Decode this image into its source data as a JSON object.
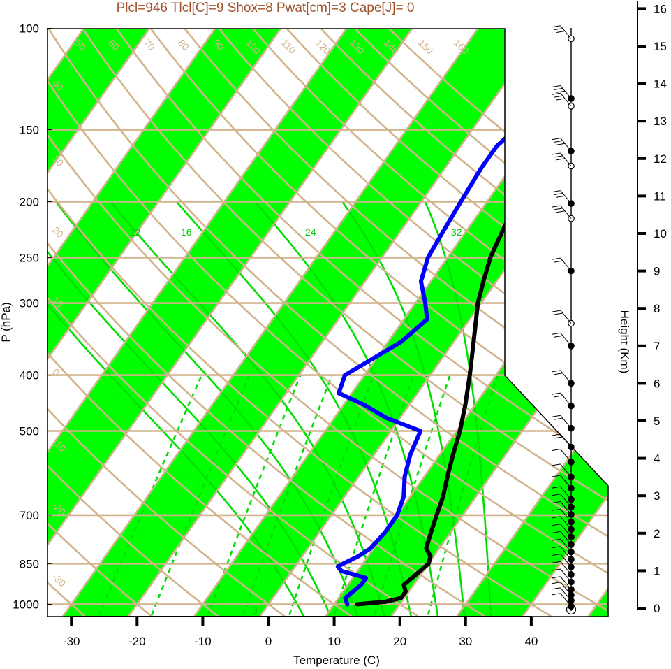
{
  "chart_data": {
    "type": "line",
    "subtype": "skew-t log-p diagram",
    "title": "Plcl=946 Tlcl[C]=9 Shox=8 Pwat[cm]=3 Cape[J]= 0",
    "xlabel": "Temperature (C)",
    "ylabel": "P (hPa)",
    "y2label": "Height (Km)",
    "xlim": [
      -34,
      52
    ],
    "ylim": [
      1050,
      100
    ],
    "y_scale": "log",
    "pressure_ticks": [
      100,
      150,
      200,
      250,
      300,
      400,
      500,
      700,
      850,
      1000
    ],
    "temperature_ticks": [
      -30,
      -20,
      -10,
      0,
      10,
      20,
      30,
      40
    ],
    "height_ticks_km": [
      0,
      1,
      2,
      3,
      4,
      5,
      6,
      7,
      8,
      9,
      10,
      11,
      12,
      13,
      14,
      15,
      16
    ],
    "isotherm_labels": [
      "50",
      "60",
      "70",
      "80",
      "90",
      "100",
      "110",
      "120",
      "130",
      "140",
      "150",
      "160",
      "40",
      "30",
      "20",
      "10",
      "0",
      "-10",
      "-20",
      "-30"
    ],
    "right_isotherm_labels": [
      "30",
      "20",
      "10",
      "0",
      "10",
      "20",
      "30"
    ],
    "mixing_ratio_labels": [
      "3"
    ],
    "moist_adiabat_labels": [
      "12",
      "16",
      "24",
      "32"
    ],
    "colors": {
      "band": "#00ff00",
      "grid": "#d2b48c",
      "temperature": "#000000",
      "dewpoint": "#0000ff",
      "adiabat": "#00e000",
      "title": "#a0522d"
    },
    "series": [
      {
        "name": "",
        "kind": "temperature",
        "points": [
          [
            1000,
            13.5
          ],
          [
            990,
            17.5
          ],
          [
            975,
            19.5
          ],
          [
            950,
            19.5
          ],
          [
            925,
            18.5
          ],
          [
            900,
            19.0
          ],
          [
            875,
            19.5
          ],
          [
            850,
            20.0
          ],
          [
            825,
            19.5
          ],
          [
            800,
            18.0
          ],
          [
            750,
            17.0
          ],
          [
            700,
            16.0
          ],
          [
            650,
            15.0
          ],
          [
            600,
            13.5
          ],
          [
            550,
            12.0
          ],
          [
            500,
            10.5
          ],
          [
            450,
            8.5
          ],
          [
            400,
            6.0
          ],
          [
            350,
            3.0
          ],
          [
            300,
            -0.5
          ],
          [
            275,
            -2.0
          ],
          [
            250,
            -3.5
          ],
          [
            225,
            -4.5
          ],
          [
            212,
            -5.0
          ],
          [
            200,
            -5.0
          ],
          [
            175,
            -4.0
          ],
          [
            150,
            -1.5
          ],
          [
            135,
            1.5
          ],
          [
            120,
            6.0
          ],
          [
            110,
            10.5
          ],
          [
            100,
            17.5
          ]
        ]
      },
      {
        "name": "",
        "kind": "dewpoint",
        "points": [
          [
            1000,
            12.0
          ],
          [
            975,
            11.0
          ],
          [
            950,
            11.5
          ],
          [
            925,
            12.0
          ],
          [
            900,
            12.0
          ],
          [
            875,
            7.5
          ],
          [
            860,
            6.5
          ],
          [
            850,
            7.0
          ],
          [
            825,
            8.5
          ],
          [
            800,
            9.5
          ],
          [
            750,
            10.0
          ],
          [
            700,
            10.0
          ],
          [
            650,
            9.0
          ],
          [
            600,
            7.0
          ],
          [
            550,
            5.5
          ],
          [
            500,
            4.5
          ],
          [
            475,
            -2.0
          ],
          [
            450,
            -7.0
          ],
          [
            430,
            -12.0
          ],
          [
            400,
            -13.0
          ],
          [
            350,
            -8.0
          ],
          [
            320,
            -6.5
          ],
          [
            300,
            -8.5
          ],
          [
            275,
            -11.5
          ],
          [
            250,
            -13.0
          ],
          [
            225,
            -13.5
          ],
          [
            200,
            -14.0
          ],
          [
            175,
            -14.5
          ],
          [
            160,
            -14.5
          ],
          [
            150,
            -13.5
          ],
          [
            135,
            -11.5
          ],
          [
            120,
            -11.0
          ],
          [
            110,
            -9.5
          ],
          [
            100,
            -5.5
          ]
        ]
      }
    ],
    "wind_profile": {
      "markers": "filled-and-open-circles",
      "level_height_km": [
        0.05,
        0.2,
        0.35,
        0.5,
        0.7,
        0.9,
        1.1,
        1.3,
        1.5,
        1.7,
        1.9,
        2.1,
        2.3,
        2.5,
        2.7,
        2.9,
        3.2,
        3.5,
        3.9,
        4.3,
        4.8,
        5.4,
        6.0,
        7.0,
        7.6,
        9.0,
        10.4,
        10.8,
        11.8,
        12.2,
        13.4,
        13.6,
        15.2
      ]
    }
  }
}
